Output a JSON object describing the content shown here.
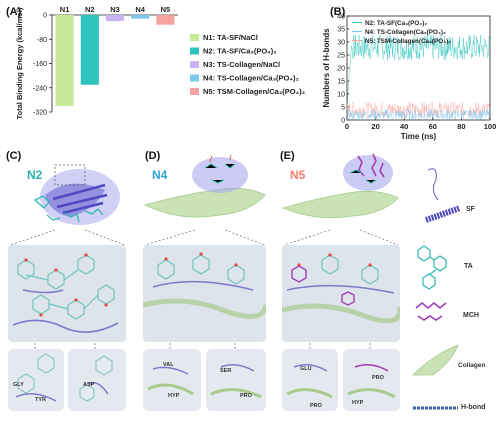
{
  "panels": {
    "a": "(A)",
    "b": "(B)",
    "c": "(C)",
    "d": "(D)",
    "e": "(E)"
  },
  "systems": {
    "c": "N2",
    "d": "N4",
    "e": "N5"
  },
  "chart_data": [
    {
      "type": "bar",
      "categories": [
        "N1",
        "N2",
        "N3",
        "N4",
        "N5"
      ],
      "values": [
        -300,
        -230,
        -20,
        -12,
        -32
      ],
      "colors": [
        "#c8e89a",
        "#2ec4bd",
        "#c9b3f0",
        "#7ec8ec",
        "#f5a3a1"
      ],
      "legend": [
        "N1: TA-SF/NaCl",
        "N2: TA-SF/Ca₃(PO₄)₂",
        "N3: TS-Collagen/NaCl",
        "N4: TS-Collagen/Ca₃(PO₄)₂",
        "N5: TSM-Collagen/Ca₃(PO₄)₂"
      ],
      "ylabel": "Total Binding Energy (kcal/mol)",
      "yticks": [
        "0",
        "-80",
        "-160",
        "-240",
        "-320"
      ],
      "ylim": [
        -320,
        0
      ]
    },
    {
      "type": "line",
      "xlabel": "Time (ns)",
      "ylabel": "Numbers of H-bonds",
      "xticks": [
        "0",
        "20",
        "40",
        "60",
        "80",
        "100"
      ],
      "yticks": [
        "0",
        "5",
        "10",
        "15",
        "20",
        "25",
        "30",
        "35",
        "40"
      ],
      "xlim": [
        0,
        100
      ],
      "ylim": [
        0,
        40
      ],
      "series": [
        {
          "name": "N2: TA-SF(Ca₃(PO₄)₂",
          "color": "#2ec4bd",
          "mean": 28,
          "spread": 5
        },
        {
          "name": "N4: TS-Collagen(Ca₃(PO₄)₂",
          "color": "#7ec8ec",
          "mean": 2,
          "spread": 2
        },
        {
          "name": "N5: TSM-Collagen(Ca₃(PO₄)₂",
          "color": "#f5a3a1",
          "mean": 4,
          "spread": 3
        }
      ]
    }
  ],
  "residues": {
    "c": [
      "GLY",
      "TYR",
      "ASP"
    ],
    "d": [
      "VAL",
      "HYP",
      "SER",
      "PRO"
    ],
    "e": [
      "GLU",
      "PRO",
      "PRO",
      "HYP"
    ]
  },
  "key": {
    "sf": "SF",
    "ta": "TA",
    "mch": "MCH",
    "collagen": "Collagen",
    "hbond": "H-bond"
  }
}
